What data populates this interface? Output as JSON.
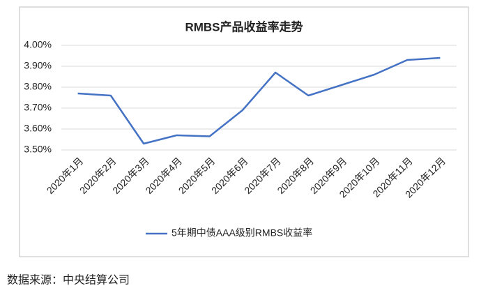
{
  "chart_data": {
    "type": "line",
    "title": "RMBS产品收益率走势",
    "categories": [
      "2020年1月",
      "2020年2月",
      "2020年3月",
      "2020年4月",
      "2020年5月",
      "2020年6月",
      "2020年7月",
      "2020年8月",
      "2020年9月",
      "2020年10月",
      "2020年11月",
      "2020年12月"
    ],
    "series": [
      {
        "name": "5年期中债AAA级别RMBS收益率",
        "color": "#4472c4",
        "values": [
          3.77,
          3.76,
          3.53,
          3.57,
          3.565,
          3.69,
          3.87,
          3.76,
          3.81,
          3.86,
          3.93,
          3.94
        ]
      }
    ],
    "ylim": [
      3.5,
      4.0
    ],
    "yticks": [
      {
        "value": 3.5,
        "label": "3.50%"
      },
      {
        "value": 3.6,
        "label": "3.60%"
      },
      {
        "value": 3.7,
        "label": "3.70%"
      },
      {
        "value": 3.8,
        "label": "3.80%"
      },
      {
        "value": 3.9,
        "label": "3.90%"
      },
      {
        "value": 4.0,
        "label": "4.00%"
      }
    ],
    "grid": true,
    "legend": "bottom"
  },
  "source": "数据来源：中央结算公司"
}
